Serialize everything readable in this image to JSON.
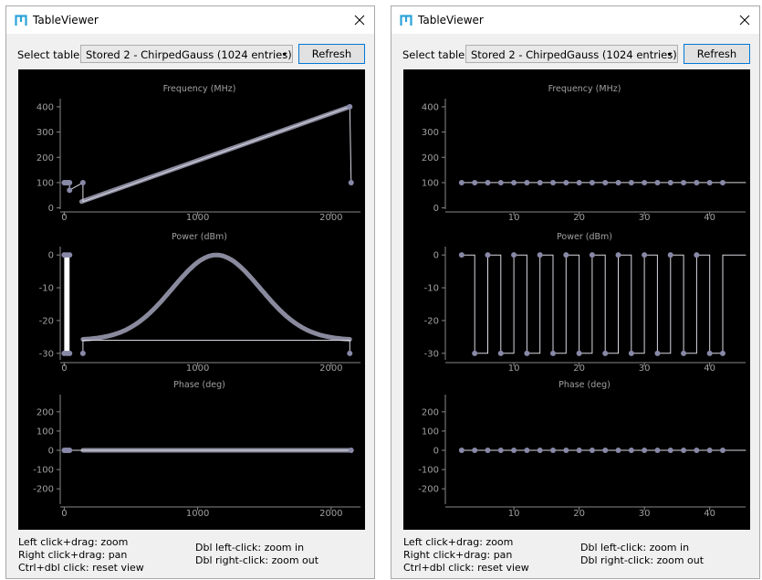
{
  "windows": [
    {
      "id": "left",
      "title": "TableViewer",
      "select_label": "Select table:",
      "selected_table": "Stored 2 - ChirpedGauss (1024 entries)",
      "refresh_label": "Refresh",
      "help_left": [
        "Left click+drag: zoom",
        "Right click+drag: pan",
        "Ctrl+dbl click: reset view"
      ],
      "help_right": [
        "Dbl left-click: zoom in",
        "Dbl right-click: zoom out"
      ]
    },
    {
      "id": "right",
      "title": "TableViewer",
      "select_label": "Select table:",
      "selected_table": "Stored 2 - ChirpedGauss (1024 entries)",
      "refresh_label": "Refresh",
      "help_left": [
        "Left click+drag: zoom",
        "Right click+drag: pan",
        "Ctrl+dbl click: reset view"
      ],
      "help_right": [
        "Dbl left-click: zoom in",
        "Dbl right-click: zoom out"
      ]
    }
  ],
  "colors": {
    "trace": "#8a8a9e",
    "marker": "#8888a8",
    "axis": "#888888",
    "plot_bg": "#000000",
    "accent": "#0078d7",
    "icon": "#2aa3d9"
  },
  "chart_data": [
    {
      "window": "left",
      "panel": "frequency",
      "type": "line",
      "title": "Frequency (MHz)",
      "xlim": [
        -30,
        2220
      ],
      "ylim": [
        -5,
        425
      ],
      "xticks": [
        0,
        1000,
        2000
      ],
      "yticks": [
        0,
        100,
        200,
        300,
        400
      ],
      "series": [
        {
          "kind": "thick",
          "x": [
            130,
            2140
          ],
          "y": [
            25,
            400
          ]
        },
        {
          "kind": "thin",
          "x": [
            0,
            40,
            40,
            140,
            140,
            2140,
            2140,
            2150
          ],
          "y": [
            100,
            100,
            70,
            100,
            25,
            400,
            400,
            100
          ]
        }
      ],
      "markers": {
        "x": [
          0,
          10,
          20,
          30,
          40,
          40,
          140,
          2140,
          2150
        ],
        "y": [
          100,
          100,
          100,
          100,
          100,
          70,
          100,
          400,
          100
        ]
      }
    },
    {
      "window": "left",
      "panel": "power",
      "type": "line",
      "title": "Power (dBm)",
      "xlim": [
        -30,
        2220
      ],
      "ylim": [
        -32,
        2
      ],
      "xticks": [
        0,
        1000,
        2000
      ],
      "yticks": [
        0,
        -10,
        -20,
        -30
      ],
      "series": [
        {
          "kind": "thick",
          "gaussian": {
            "x0": 140,
            "x1": 2140,
            "peak_x": 1140,
            "peak": 0,
            "floor": -26,
            "sigma": 330
          }
        },
        {
          "kind": "thin",
          "x": [
            140,
            140,
            2140,
            2140
          ],
          "y": [
            -30,
            -26,
            -26,
            -30
          ]
        }
      ],
      "bars": [
        {
          "x0": 0,
          "x1": 40,
          "y0": 0,
          "y1": -30
        }
      ],
      "markers": {
        "x": [
          0,
          20,
          40,
          0,
          20,
          40,
          140,
          2140
        ],
        "y": [
          0,
          0,
          0,
          -30,
          -30,
          -30,
          -30,
          -30
        ]
      }
    },
    {
      "window": "left",
      "panel": "phase",
      "type": "line",
      "title": "Phase (deg)",
      "xlim": [
        -30,
        2220
      ],
      "ylim": [
        -280,
        280
      ],
      "xticks": [
        0,
        1000,
        2000
      ],
      "yticks": [
        200,
        100,
        0,
        -100,
        -200
      ],
      "series": [
        {
          "kind": "thick",
          "x": [
            140,
            2150
          ],
          "y": [
            0,
            0
          ]
        },
        {
          "kind": "thin",
          "x": [
            0,
            2150
          ],
          "y": [
            0,
            0
          ]
        }
      ],
      "markers": {
        "x": [
          0,
          10,
          20,
          30,
          40,
          2150
        ],
        "y": [
          0,
          0,
          0,
          0,
          0,
          0
        ]
      }
    },
    {
      "window": "right",
      "panel": "frequency",
      "type": "line",
      "title": "Frequency (MHz)",
      "xlim": [
        -0.5,
        45.5
      ],
      "ylim": [
        -5,
        425
      ],
      "xticks": [
        10,
        20,
        30,
        40
      ],
      "yticks": [
        0,
        100,
        200,
        300,
        400
      ],
      "series": [
        {
          "kind": "thin",
          "x": [
            2,
            45.5
          ],
          "y": [
            100,
            100
          ]
        }
      ],
      "markers": {
        "x": [
          2,
          4,
          6,
          8,
          10,
          12,
          14,
          16,
          18,
          20,
          22,
          24,
          26,
          28,
          30,
          32,
          34,
          36,
          38,
          40,
          42
        ],
        "y": [
          100,
          100,
          100,
          100,
          100,
          100,
          100,
          100,
          100,
          100,
          100,
          100,
          100,
          100,
          100,
          100,
          100,
          100,
          100,
          100,
          100
        ]
      }
    },
    {
      "window": "right",
      "panel": "power",
      "type": "line",
      "title": "Power (dBm)",
      "xlim": [
        -0.5,
        45.5
      ],
      "ylim": [
        -32,
        2
      ],
      "xticks": [
        10,
        20,
        30,
        40
      ],
      "yticks": [
        0,
        -10,
        -20,
        -30
      ],
      "series": [
        {
          "kind": "square",
          "x0": 2,
          "step": 2,
          "count": 21,
          "high": 0,
          "low": -30,
          "end_x": 45.5
        }
      ],
      "markers": {
        "x": [
          2,
          4,
          6,
          8,
          10,
          12,
          14,
          16,
          18,
          20,
          22,
          24,
          26,
          28,
          30,
          32,
          34,
          36,
          38,
          40,
          42
        ],
        "y": [
          0,
          -30,
          0,
          -30,
          0,
          -30,
          0,
          -30,
          0,
          -30,
          0,
          -30,
          0,
          -30,
          0,
          -30,
          0,
          -30,
          0,
          -30,
          -30
        ]
      }
    },
    {
      "window": "right",
      "panel": "phase",
      "type": "line",
      "title": "Phase (deg)",
      "xlim": [
        -0.5,
        45.5
      ],
      "ylim": [
        -280,
        280
      ],
      "xticks": [
        10,
        20,
        30,
        40
      ],
      "yticks": [
        200,
        100,
        0,
        -100,
        -200
      ],
      "series": [
        {
          "kind": "thin",
          "x": [
            2,
            45.5
          ],
          "y": [
            0,
            0
          ]
        }
      ],
      "markers": {
        "x": [
          2,
          4,
          6,
          8,
          10,
          12,
          14,
          16,
          18,
          20,
          22,
          24,
          26,
          28,
          30,
          32,
          34,
          36,
          38,
          40,
          42
        ],
        "y": [
          0,
          0,
          0,
          0,
          0,
          0,
          0,
          0,
          0,
          0,
          0,
          0,
          0,
          0,
          0,
          0,
          0,
          0,
          0,
          0,
          0
        ]
      }
    }
  ]
}
